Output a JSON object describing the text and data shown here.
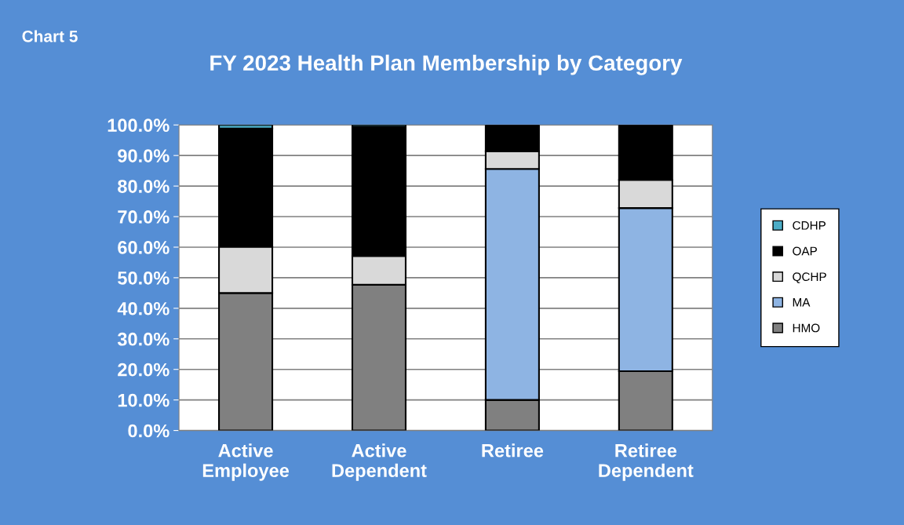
{
  "chart_data": {
    "type": "bar",
    "stacked": true,
    "title": "FY 2023 Health Plan Membership by Category",
    "annotations": [
      "Chart 5"
    ],
    "categories": [
      "Active\nEmployee",
      "Active\nDependent",
      "Retiree",
      "Retiree\nDependent"
    ],
    "series": [
      {
        "name": "HMO",
        "color": "#808080",
        "values": [
          45.0,
          47.7,
          10.0,
          19.4
        ]
      },
      {
        "name": "MA",
        "color": "#8eb4e3",
        "values": [
          null,
          null,
          75.6,
          53.4
        ]
      },
      {
        "name": "QCHP",
        "color": "#d9d9d9",
        "values": [
          15.1,
          9.4,
          5.8,
          9.2
        ]
      },
      {
        "name": "OAP",
        "color": "#000000",
        "values": [
          38.7,
          42.3,
          8.6,
          18.0
        ]
      },
      {
        "name": "CDHP",
        "color": "#4bacc6",
        "values": [
          1.2,
          0.6,
          null,
          null
        ]
      }
    ],
    "ylim": [
      0,
      100
    ],
    "yticks": [
      {
        "value": 0,
        "label": "0.0%"
      },
      {
        "value": 10,
        "label": "10.0%"
      },
      {
        "value": 20,
        "label": "20.0%"
      },
      {
        "value": 30,
        "label": "30.0%"
      },
      {
        "value": 40,
        "label": "40.0%"
      },
      {
        "value": 50,
        "label": "50.0%"
      },
      {
        "value": 60,
        "label": "60.0%"
      },
      {
        "value": 70,
        "label": "70.0%"
      },
      {
        "value": 80,
        "label": "80.0%"
      },
      {
        "value": 90,
        "label": "90.0%"
      },
      {
        "value": 100,
        "label": "100.0%"
      }
    ],
    "grid": "y",
    "legend": "right"
  }
}
